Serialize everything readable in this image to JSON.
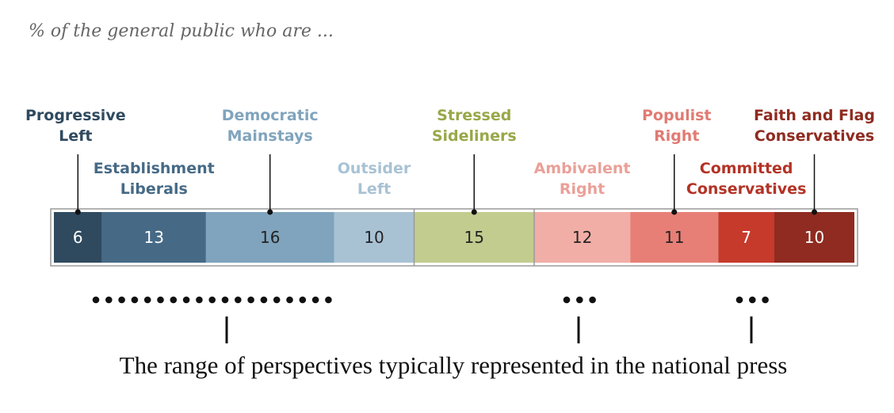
{
  "chart_data": {
    "type": "bar",
    "subtitle": "% of the general public who are ...",
    "categories": [
      "Progressive Left",
      "Establishment Liberals",
      "Democratic Mainstays",
      "Outsider Left",
      "Stressed Sideliners",
      "Ambivalent Right",
      "Populist Right",
      "Committed Conservatives",
      "Faith and Flag Conservatives"
    ],
    "values": [
      6,
      13,
      16,
      10,
      15,
      12,
      11,
      7,
      10
    ],
    "colors": [
      "#2f4a5f",
      "#466a86",
      "#80a4bd",
      "#a8c2d4",
      "#c3cc8f",
      "#f1aea6",
      "#e77f76",
      "#c63a2c",
      "#8f2b20"
    ],
    "label_colors": [
      "#2f4a5f",
      "#466a86",
      "#80a4bd",
      "#a8c2d4",
      "#98a848",
      "#eaa098",
      "#e07b72",
      "#b33326",
      "#8f2b20"
    ],
    "value_text_colors": [
      "#ffffff",
      "#ffffff",
      "#222222",
      "#222222",
      "#222222",
      "#222222",
      "#222222",
      "#ffffff",
      "#ffffff"
    ],
    "label_lines": [
      [
        "Progressive",
        "Left"
      ],
      [
        "Establishment",
        "Liberals"
      ],
      [
        "Democratic",
        "Mainstays"
      ],
      [
        "Outsider",
        "Left"
      ],
      [
        "Stressed",
        "Sideliners"
      ],
      [
        "Ambivalent",
        "Right"
      ],
      [
        "Populist",
        "Right"
      ],
      [
        "Committed",
        "Conservatives"
      ],
      [
        "Faith and Flag",
        "Conservatives"
      ]
    ],
    "stacked": true,
    "orientation": "horizontal",
    "press_dot_groups": [
      19,
      3,
      3
    ],
    "caption": "The range of perspectives typically represented in the national press"
  }
}
